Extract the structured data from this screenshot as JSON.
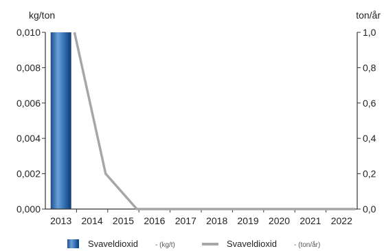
{
  "chart_data": {
    "type": "bar+line",
    "categories": [
      "2013",
      "2014",
      "2015",
      "2016",
      "2017",
      "2018",
      "2019",
      "2020",
      "2021",
      "2022"
    ],
    "left_axis": {
      "unit_label": "kg/ton",
      "ylim": [
        0,
        0.01
      ],
      "ticks": [
        "0,000",
        "0,002",
        "0,004",
        "0,006",
        "0,008",
        "0,010"
      ],
      "tick_values": [
        0,
        0.002,
        0.004,
        0.006,
        0.008,
        0.01
      ]
    },
    "right_axis": {
      "unit_label": "ton/år",
      "ylim": [
        0,
        1.0
      ],
      "ticks": [
        "0,0",
        "0,2",
        "0,4",
        "0,6",
        "0,8",
        "1,0"
      ],
      "tick_values": [
        0,
        0.2,
        0.4,
        0.6,
        0.8,
        1.0
      ]
    },
    "series": [
      {
        "name": "Svaveldioxid",
        "unit": "- (kg/t)",
        "kind": "bar",
        "axis": "left",
        "color": "#1f5c9a",
        "values": [
          0.01,
          0,
          0,
          0,
          0,
          0,
          0,
          0,
          0,
          0
        ]
      },
      {
        "name": "Svaveldioxid",
        "unit": "- (ton/år)",
        "kind": "line",
        "axis": "right",
        "color": "#a6a6a6",
        "values": [
          1.0,
          0.2,
          0,
          0,
          0,
          0,
          0,
          0,
          0,
          0
        ]
      }
    ],
    "grid": false,
    "legend_position": "bottom"
  }
}
